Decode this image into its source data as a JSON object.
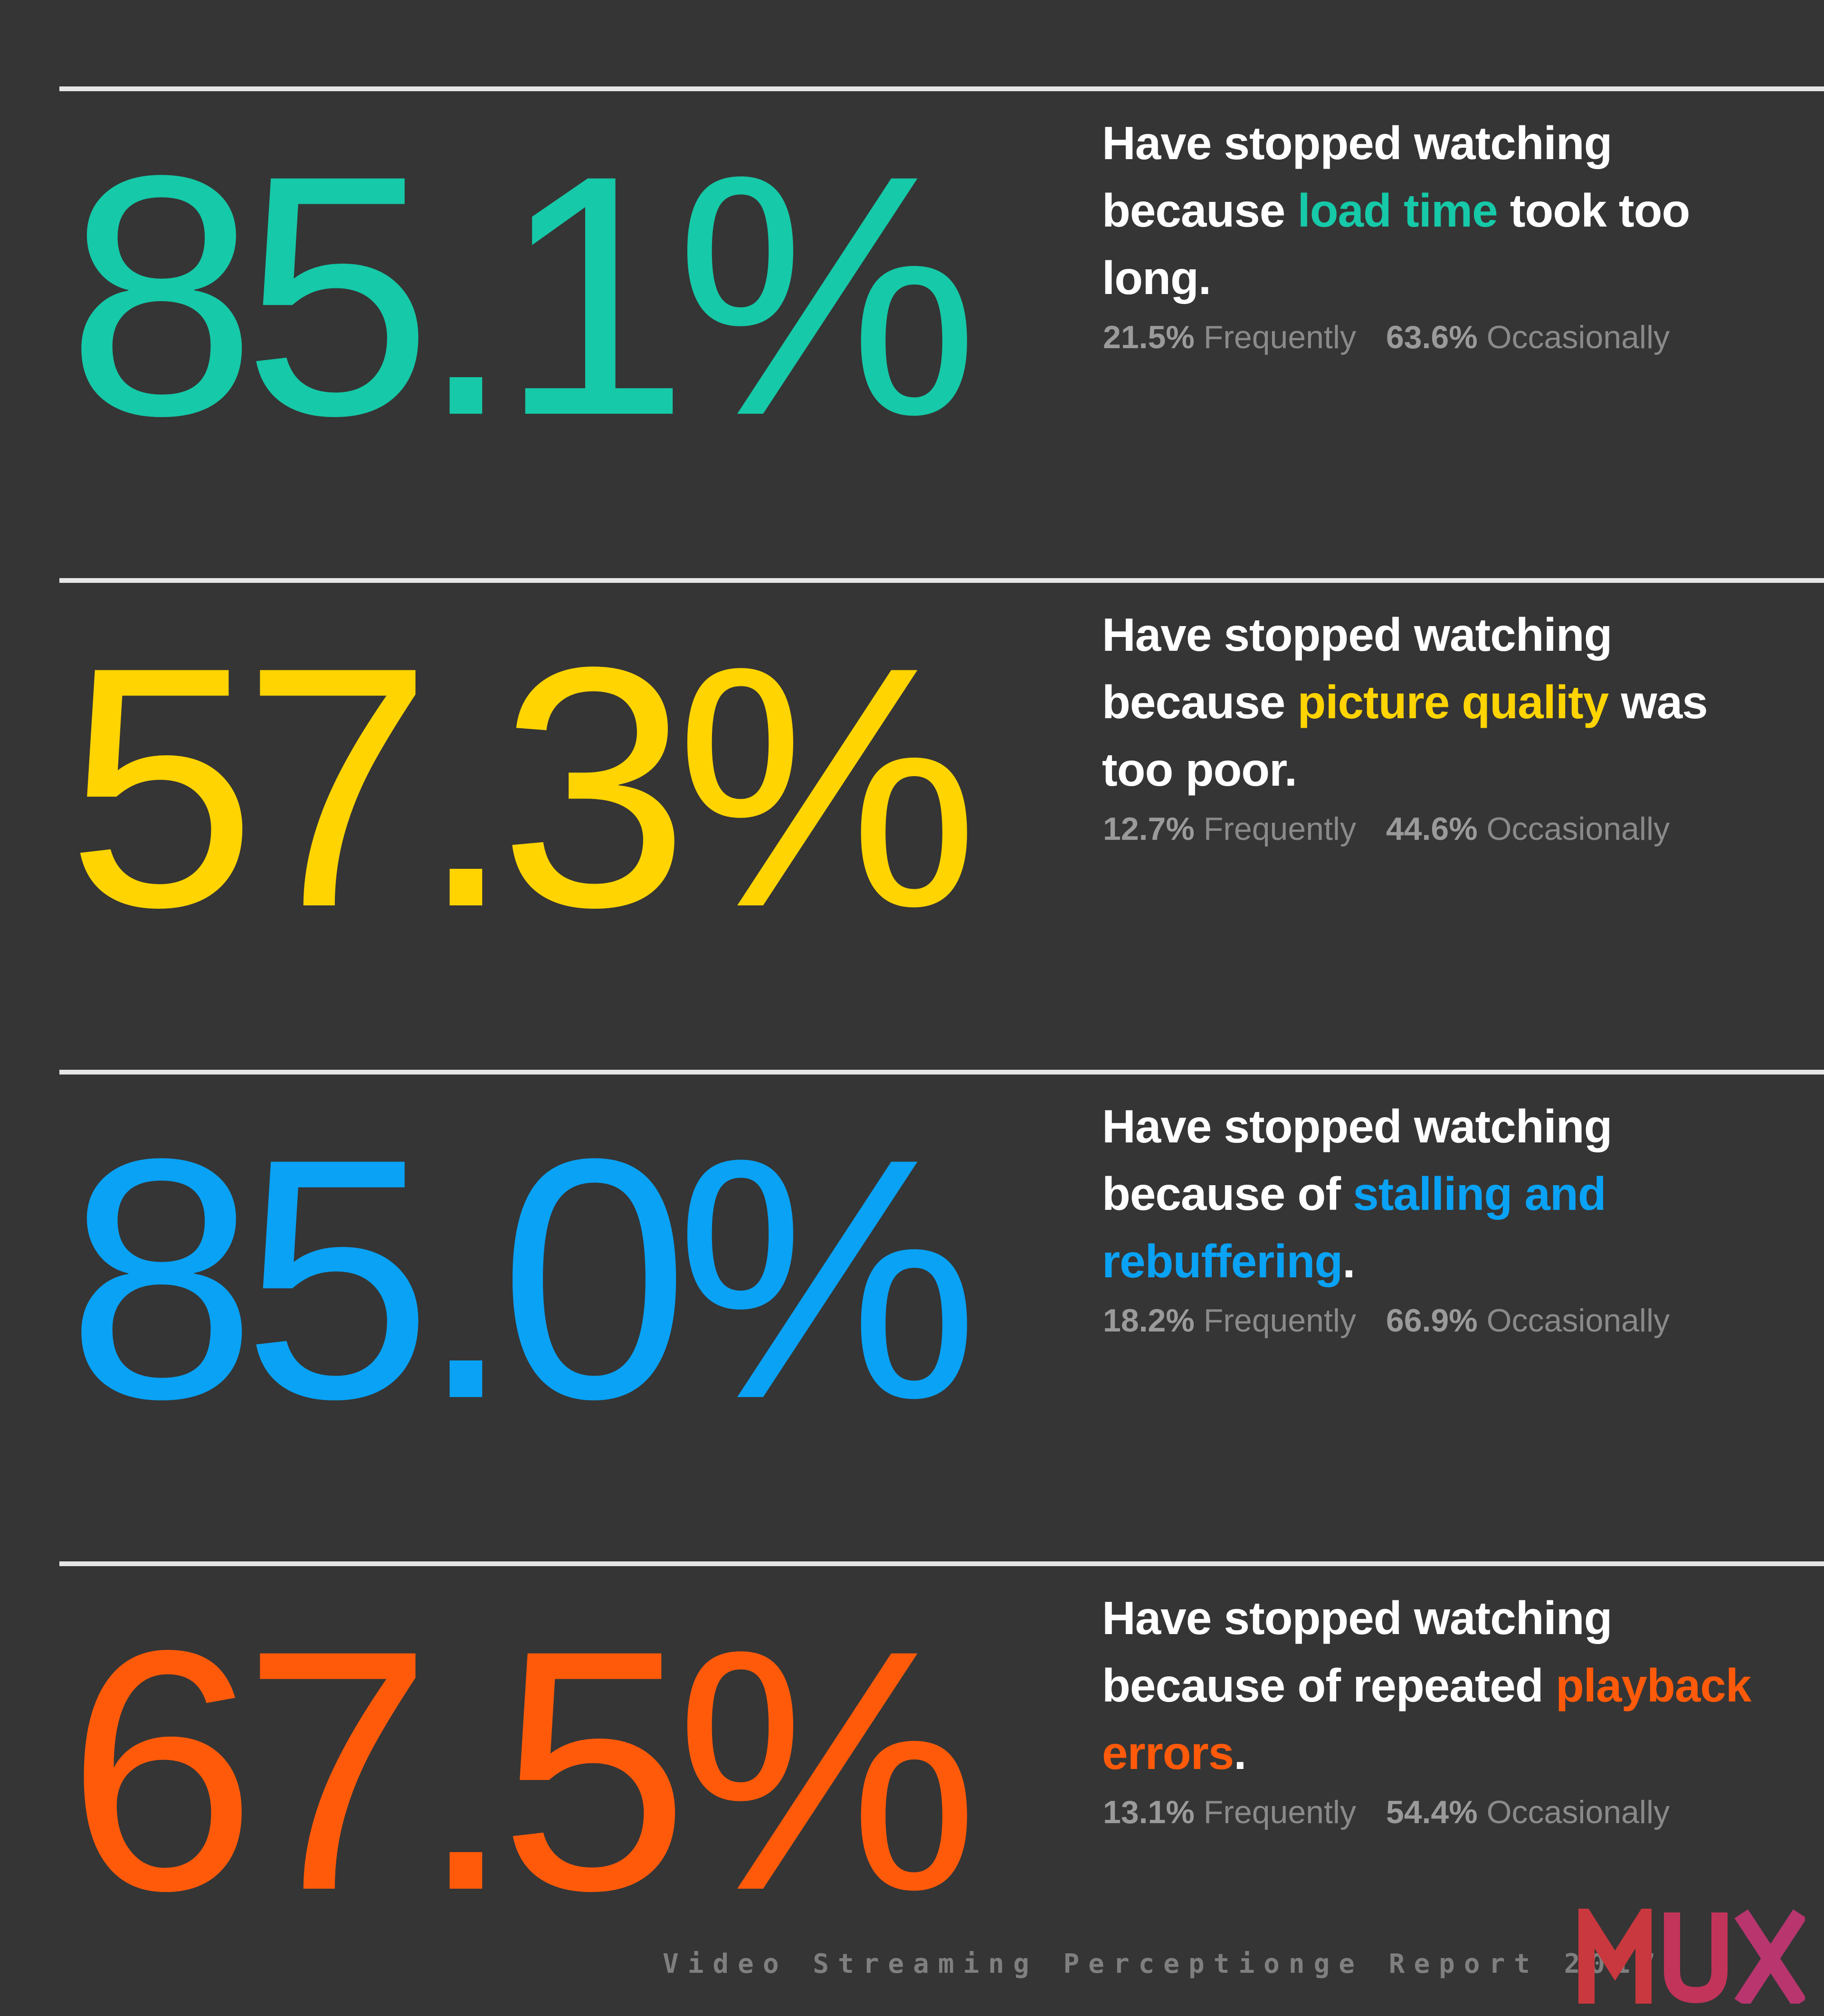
{
  "colors": {
    "background": "#353535",
    "rule": "#e6e6e6",
    "load_time": "#16c9a8",
    "picture_quality": "#ffd400",
    "stalling": "#09a2f5",
    "playback_errors": "#ff5a0a",
    "logo": "#c9383e"
  },
  "stats": [
    {
      "value": "85.1%",
      "line1": "Have stopped watching",
      "pre": "because ",
      "highlight": "load time",
      "post": " took too long.",
      "frequently_value": "21.5%",
      "frequently_label": "Frequently",
      "occasionally_value": "63.6%",
      "occasionally_label": "Occasionally"
    },
    {
      "value": "57.3%",
      "line1": "Have stopped watching",
      "pre": "because ",
      "highlight": "picture quality",
      "post": " was too poor.",
      "frequently_value": "12.7%",
      "frequently_label": "Frequently",
      "occasionally_value": "44.6%",
      "occasionally_label": "Occasionally"
    },
    {
      "value": "85.0%",
      "line1": "Have stopped watching",
      "pre": "because of ",
      "highlight": "stalling and rebuffering",
      "post": ".",
      "frequently_value": "18.2%",
      "frequently_label": "Frequently",
      "occasionally_value": "66.9%",
      "occasionally_label": "Occasionally"
    },
    {
      "value": "67.5%",
      "line1": "Have stopped watching",
      "pre": "because of repeated ",
      "highlight": "playback errors",
      "post": ".",
      "frequently_value": "13.1%",
      "frequently_label": "Frequently",
      "occasionally_value": "54.4%",
      "occasionally_label": "Occasionally"
    }
  ],
  "footer": {
    "report_title": "Video Streaming Perceptionge Report 2017",
    "logo_text": "MUX"
  }
}
